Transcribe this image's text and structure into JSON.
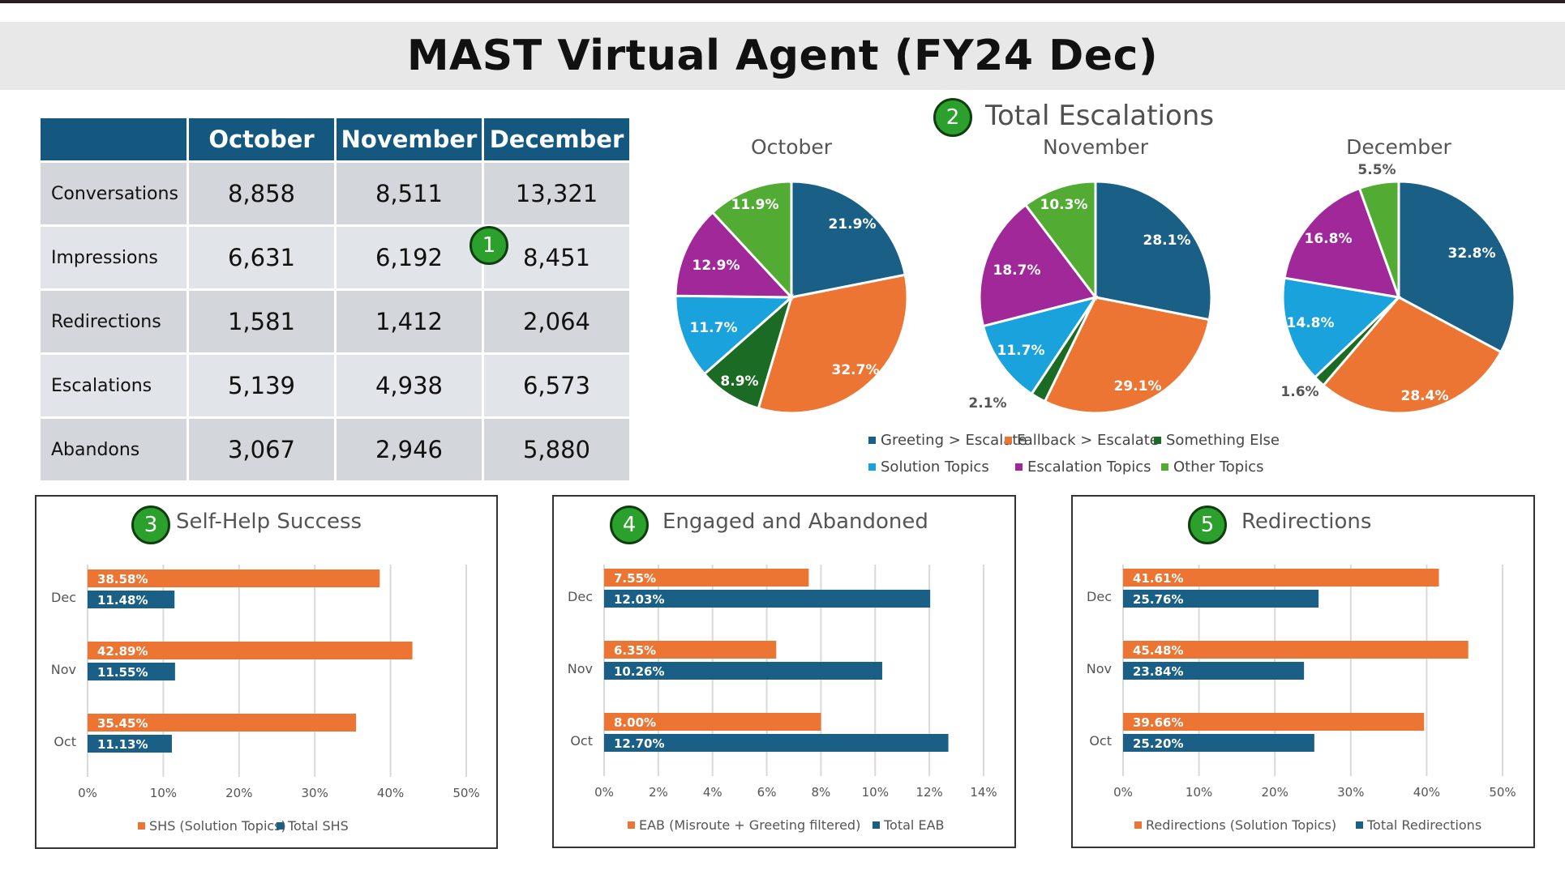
{
  "title": "MAST Virtual Agent (FY24 Dec)",
  "colors": {
    "blue_dark": "#1a5f86",
    "orange": "#ed7533",
    "green_dark": "#1c6b25",
    "cyan": "#19a2dc",
    "purple": "#a02899",
    "green": "#52ab33",
    "header": "#14577f",
    "badge": "#2ca02c"
  },
  "table": {
    "headers": [
      "",
      "October",
      "November",
      "December"
    ],
    "rows": [
      {
        "label": "Conversations",
        "values": [
          "8,858",
          "8,511",
          "13,321"
        ]
      },
      {
        "label": "Impressions",
        "values": [
          "6,631",
          "6,192",
          "8,451"
        ]
      },
      {
        "label": "Redirections",
        "values": [
          "1,581",
          "1,412",
          "2,064"
        ]
      },
      {
        "label": "Escalations",
        "values": [
          "5,139",
          "4,938",
          "6,573"
        ]
      },
      {
        "label": "Abandons",
        "values": [
          "3,067",
          "2,946",
          "5,880"
        ]
      }
    ],
    "badge": "1"
  },
  "escalations": {
    "badge": "2",
    "title": "Total Escalations",
    "legend": [
      "Greeting > Escalate",
      "Fallback > Escalate",
      "Something Else",
      "Solution Topics",
      "Escalation Topics",
      "Other Topics"
    ],
    "legend_colors": [
      "#1a5f86",
      "#ed7533",
      "#1c6b25",
      "#19a2dc",
      "#a02899",
      "#52ab33"
    ]
  },
  "self_help": {
    "badge": "3",
    "title": "Self-Help Success"
  },
  "engaged": {
    "badge": "4",
    "title": "Engaged and Abandoned"
  },
  "redirections": {
    "badge": "5",
    "title": "Redirections"
  },
  "chart_data": [
    {
      "type": "pie",
      "title": "October",
      "labels": [
        "Greeting > Escalate",
        "Fallback > Escalate",
        "Something Else",
        "Solution Topics",
        "Escalation Topics",
        "Other Topics"
      ],
      "values": [
        21.9,
        32.7,
        8.9,
        11.7,
        12.9,
        11.9
      ],
      "value_labels": [
        "21.9%",
        "32.7%",
        "8.9%",
        "11.7%",
        "12.9%",
        "11.9%"
      ]
    },
    {
      "type": "pie",
      "title": "November",
      "labels": [
        "Greeting > Escalate",
        "Fallback > Escalate",
        "Something Else",
        "Solution Topics",
        "Escalation Topics",
        "Other Topics"
      ],
      "values": [
        28.1,
        29.1,
        2.1,
        11.7,
        18.7,
        10.3
      ],
      "value_labels": [
        "28.1%",
        "29.1%",
        "2.1%",
        "11.7%",
        "18.7%",
        "10.3%"
      ]
    },
    {
      "type": "pie",
      "title": "December",
      "labels": [
        "Greeting > Escalate",
        "Fallback > Escalate",
        "Something Else",
        "Solution Topics",
        "Escalation Topics",
        "Other Topics"
      ],
      "values": [
        32.8,
        28.4,
        1.6,
        14.8,
        16.8,
        5.5
      ],
      "value_labels": [
        "32.8%",
        "28.4%",
        "1.6%",
        "14.8%",
        "16.8%",
        "5.5%"
      ]
    },
    {
      "type": "bar",
      "orientation": "horizontal",
      "title": "Self-Help Success",
      "categories": [
        "Dec",
        "Nov",
        "Oct"
      ],
      "xlim": [
        0,
        50
      ],
      "xticks": [
        0,
        10,
        20,
        30,
        40,
        50
      ],
      "tick_suffix": "%",
      "series": [
        {
          "name": "SHS (Solution Topics)",
          "values": [
            38.58,
            42.89,
            35.45
          ],
          "value_labels": [
            "38.58%",
            "42.89%",
            "35.45%"
          ],
          "color": "#ed7533"
        },
        {
          "name": "Total SHS",
          "values": [
            11.48,
            11.55,
            11.13
          ],
          "value_labels": [
            "11.48%",
            "11.55%",
            "11.13%"
          ],
          "color": "#1a5f86"
        }
      ]
    },
    {
      "type": "bar",
      "orientation": "horizontal",
      "title": "Engaged and Abandoned",
      "categories": [
        "Dec",
        "Nov",
        "Oct"
      ],
      "xlim": [
        0,
        14
      ],
      "xticks": [
        0,
        2,
        4,
        6,
        8,
        10,
        12,
        14
      ],
      "tick_suffix": "%",
      "series": [
        {
          "name": "EAB (Misroute + Greeting filtered)",
          "values": [
            7.55,
            6.35,
            8.0
          ],
          "value_labels": [
            "7.55%",
            "6.35%",
            "8.00%"
          ],
          "color": "#ed7533"
        },
        {
          "name": "Total EAB",
          "values": [
            12.03,
            10.26,
            12.7
          ],
          "value_labels": [
            "12.03%",
            "10.26%",
            "12.70%"
          ],
          "color": "#1a5f86"
        }
      ]
    },
    {
      "type": "bar",
      "orientation": "horizontal",
      "title": "Redirections",
      "categories": [
        "Dec",
        "Nov",
        "Oct"
      ],
      "xlim": [
        0,
        50
      ],
      "xticks": [
        0,
        10,
        20,
        30,
        40,
        50
      ],
      "tick_suffix": "%",
      "series": [
        {
          "name": "Redirections (Solution Topics)",
          "values": [
            41.61,
            45.48,
            39.66
          ],
          "value_labels": [
            "41.61%",
            "45.48%",
            "39.66%"
          ],
          "color": "#ed7533"
        },
        {
          "name": "Total Redirections",
          "values": [
            25.76,
            23.84,
            25.2
          ],
          "value_labels": [
            "25.76%",
            "23.84%",
            "25.20%"
          ],
          "color": "#1a5f86"
        }
      ]
    }
  ]
}
